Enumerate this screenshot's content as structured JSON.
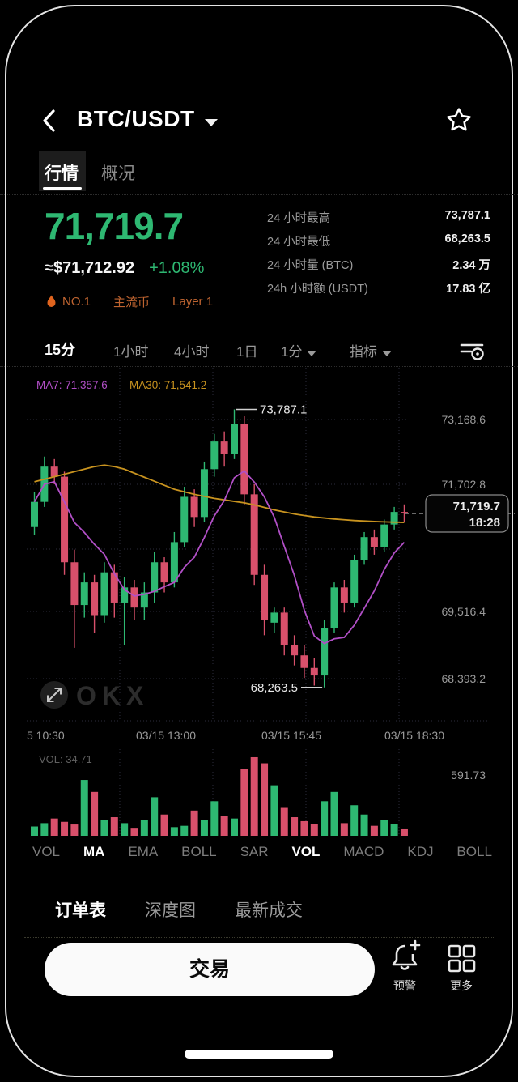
{
  "header": {
    "title": "BTC/USDT"
  },
  "tabs": [
    {
      "label": "行情",
      "active": true
    },
    {
      "label": "概况",
      "active": false
    }
  ],
  "price": {
    "last": "71,719.7",
    "fiat": "≈$71,712.92",
    "change": "+1.08%"
  },
  "badges": [
    {
      "icon": "flame-icon",
      "label": "NO.1"
    },
    {
      "label": "主流币"
    },
    {
      "label": "Layer 1"
    }
  ],
  "stats": [
    {
      "label": "24 小时最高",
      "value": "73,787.1"
    },
    {
      "label": "24 小时最低",
      "value": "68,263.5"
    },
    {
      "label": "24 小时量 (BTC)",
      "value": "2.34 万"
    },
    {
      "label": "24h 小时额 (USDT)",
      "value": "17.83 亿"
    }
  ],
  "timeframes": [
    {
      "label": "15分",
      "active": true
    },
    {
      "label": "1小时",
      "active": false
    },
    {
      "label": "4小时",
      "active": false
    },
    {
      "label": "1日",
      "active": false
    },
    {
      "label": "1分",
      "active": false,
      "caret": true
    },
    {
      "label": "指标",
      "active": false,
      "caret": true
    }
  ],
  "chart_data": {
    "type": "candlestick",
    "ma_legend": [
      {
        "name": "MA7",
        "value": "71,357.6",
        "color": "#b14fc6"
      },
      {
        "name": "MA30",
        "value": "71,541.2",
        "color": "#c8931f"
      }
    ],
    "y_axis_labels": [
      "73,168.6",
      "71,702.8",
      "69,516.4",
      "68,393.2"
    ],
    "x_axis_labels": [
      "5 10:30",
      "03/15 13:00",
      "03/15 15:45",
      "03/15 18:30"
    ],
    "high_annotation": "73,787.1",
    "low_annotation": "68,263.5",
    "high_value": 73787.1,
    "low_value": 68263.5,
    "last_value": 71719.7,
    "price_tag": {
      "price": "71,719.7",
      "time": "18:28"
    },
    "colors": {
      "up": "#2eb872",
      "down": "#d8506b",
      "ma7": "#b14fc6",
      "ma30": "#c8931f"
    },
    "candles": [
      [
        71450,
        72150,
        71300,
        71950
      ],
      [
        71950,
        72850,
        71850,
        72650
      ],
      [
        72650,
        72800,
        72300,
        72450
      ],
      [
        72450,
        72550,
        70500,
        70750
      ],
      [
        70750,
        71000,
        69050,
        69900
      ],
      [
        69900,
        70550,
        69650,
        70350
      ],
      [
        70350,
        70500,
        69350,
        69700
      ],
      [
        69700,
        70750,
        69550,
        70550
      ],
      [
        70550,
        70700,
        69650,
        69950
      ],
      [
        69950,
        70450,
        69100,
        70250
      ],
      [
        70250,
        70400,
        69600,
        69850
      ],
      [
        69850,
        70350,
        69600,
        70150
      ],
      [
        70150,
        70950,
        69950,
        70750
      ],
      [
        70750,
        70850,
        70150,
        70350
      ],
      [
        70350,
        71350,
        70250,
        71150
      ],
      [
        71150,
        72250,
        71050,
        72050
      ],
      [
        72050,
        72200,
        71450,
        71650
      ],
      [
        71650,
        72750,
        71550,
        72600
      ],
      [
        72600,
        73300,
        72450,
        73150
      ],
      [
        73150,
        73350,
        72650,
        72900
      ],
      [
        72900,
        73787.1,
        72800,
        73500
      ],
      [
        73500,
        73650,
        71900,
        72100
      ],
      [
        72100,
        72300,
        70300,
        70500
      ],
      [
        70500,
        70700,
        69300,
        69600
      ],
      [
        69550,
        69850,
        69350,
        69750
      ],
      [
        69750,
        69850,
        68900,
        69100
      ],
      [
        69100,
        69300,
        68700,
        68900
      ],
      [
        68900,
        69100,
        68450,
        68650
      ],
      [
        68650,
        68850,
        68300,
        68500
      ],
      [
        68500,
        69600,
        68263.5,
        69450
      ],
      [
        69450,
        70350,
        69350,
        70250
      ],
      [
        70250,
        70400,
        69750,
        69950
      ],
      [
        69950,
        70900,
        69850,
        70800
      ],
      [
        70800,
        71350,
        70700,
        71250
      ],
      [
        71250,
        71400,
        70900,
        71050
      ],
      [
        71050,
        71600,
        70950,
        71500
      ],
      [
        71500,
        71850,
        71400,
        71750
      ],
      [
        71750,
        71900,
        71550,
        71719.7
      ]
    ],
    "ma30_values": [
      72350,
      72400,
      72450,
      72500,
      72550,
      72600,
      72650,
      72680,
      72650,
      72600,
      72520,
      72440,
      72360,
      72280,
      72200,
      72150,
      72100,
      72060,
      72020,
      71990,
      71960,
      71930,
      71890,
      71840,
      71790,
      71750,
      71710,
      71680,
      71650,
      71630,
      71610,
      71595,
      71580,
      71570,
      71560,
      71553,
      71547,
      71541.2
    ],
    "volume": {
      "label": "VOL: 34.71",
      "scale_max_label": "591.73",
      "scale_max": 591.73,
      "values": [
        70,
        95,
        130,
        105,
        85,
        420,
        330,
        120,
        140,
        95,
        60,
        120,
        290,
        160,
        65,
        75,
        190,
        120,
        260,
        150,
        130,
        500,
        591,
        545,
        380,
        210,
        140,
        110,
        90,
        260,
        330,
        95,
        230,
        160,
        75,
        120,
        90,
        55
      ]
    }
  },
  "indicator_tabs": [
    "VOL",
    "MA",
    "EMA",
    "BOLL",
    "SAR",
    "VOL",
    "MACD",
    "KDJ",
    "BOLL"
  ],
  "order_tabs": [
    "订单表",
    "深度图",
    "最新成交"
  ],
  "bottom_bar": {
    "trade_label": "交易",
    "alert_label": "预警",
    "more_label": "更多"
  }
}
